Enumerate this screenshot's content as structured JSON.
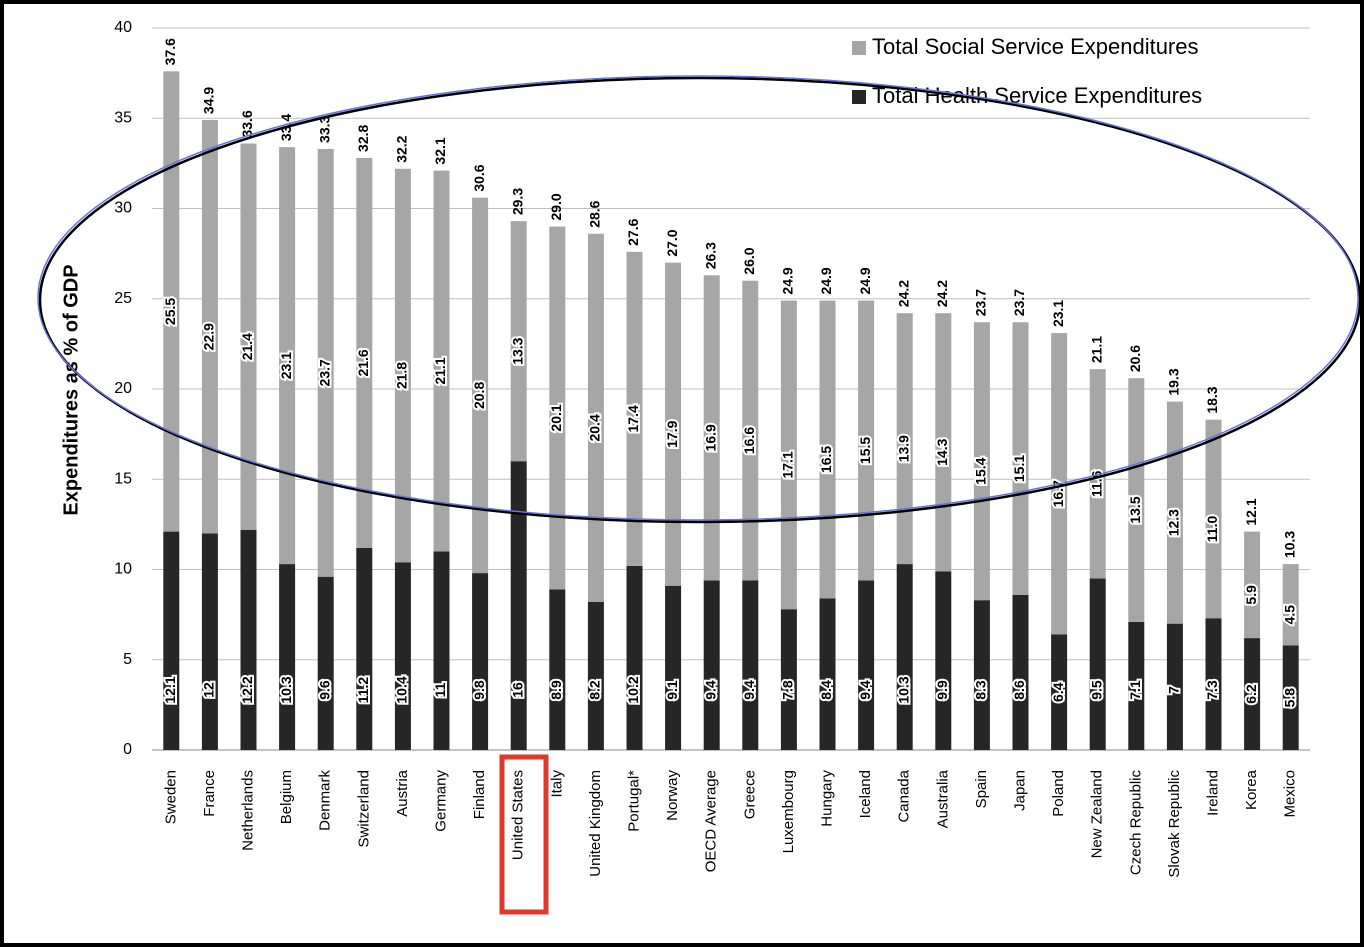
{
  "chart_data": {
    "type": "stacked-bar",
    "y_label": "Expenditures as % of GDP",
    "categories": [
      "Sweden",
      "France",
      "Netherlands",
      "Belgium",
      "Denmark",
      "Switzerland",
      "Austria",
      "Germany",
      "Finland",
      "United States",
      "Italy",
      "United Kingdom",
      "Portugal*",
      "Norway",
      "OECD Average",
      "Greece",
      "Luxembourg",
      "Hungary",
      "Iceland",
      "Canada",
      "Australia",
      "Spain",
      "Japan",
      "Poland",
      "New Zealand",
      "Czech Republic",
      "Slovak Republic",
      "Ireland",
      "Korea",
      "Mexico"
    ],
    "series": [
      {
        "name": "Total Health Service Expenditures",
        "color": "#262626",
        "values": [
          12.1,
          12,
          12.2,
          10.3,
          9.6,
          11.2,
          10.4,
          11,
          9.8,
          16,
          8.9,
          8.2,
          10.2,
          9.1,
          9.4,
          9.4,
          7.8,
          8.4,
          9.4,
          10.3,
          9.9,
          8.3,
          8.6,
          6.4,
          9.5,
          7.1,
          7,
          7.3,
          6.2,
          5.8
        ],
        "value_labels": [
          "12.1",
          "12",
          "12.2",
          "10.3",
          "9.6",
          "11.2",
          "10.4",
          "11",
          "9.8",
          "16",
          "8.9",
          "8.2",
          "10.2",
          "9.1",
          "9.4",
          "9.4",
          "7.8",
          "8.4",
          "9.4",
          "10.3",
          "9.9",
          "8.3",
          "8.6",
          "6.4",
          "9.5",
          "7.1",
          "7",
          "7.3",
          "6.2",
          "5.8"
        ]
      },
      {
        "name": "Total Social Service Expenditures",
        "color": "#a6a6a6",
        "values": [
          25.5,
          22.9,
          21.4,
          23.1,
          23.7,
          21.6,
          21.8,
          21.1,
          20.8,
          13.3,
          20.1,
          20.4,
          17.4,
          17.9,
          16.9,
          16.6,
          17.1,
          16.5,
          15.5,
          13.9,
          14.3,
          15.4,
          15.1,
          16.7,
          11.6,
          13.5,
          12.3,
          11.0,
          5.9,
          4.5
        ],
        "value_labels": [
          "25.5",
          "22.9",
          "21.4",
          "23.1",
          "23.7",
          "21.6",
          "21.8",
          "21.1",
          "20.8",
          "13.3",
          "20.1",
          "20.4",
          "17.4",
          "17.9",
          "16.9",
          "16.6",
          "17.1",
          "16.5",
          "15.5",
          "13.9",
          "14.3",
          "15.4",
          "15.1",
          "16.7",
          "11.6",
          "13.5",
          "12.3",
          "11.0",
          "5.9",
          "4.5"
        ]
      }
    ],
    "totals": [
      37.6,
      34.9,
      33.6,
      33.4,
      33.3,
      32.8,
      32.2,
      32.1,
      30.6,
      29.3,
      29.0,
      28.6,
      27.6,
      27.0,
      26.3,
      26.0,
      24.9,
      24.9,
      24.9,
      24.2,
      24.2,
      23.7,
      23.7,
      23.1,
      21.1,
      20.6,
      19.3,
      18.3,
      12.1,
      10.3
    ],
    "total_labels": [
      "37.6",
      "34.9",
      "33.6",
      "33.4",
      "33.3",
      "32.8",
      "32.2",
      "32.1",
      "30.6",
      "29.3",
      "29.0",
      "28.6",
      "27.6",
      "27.0",
      "26.3",
      "26.0",
      "24.9",
      "24.9",
      "24.9",
      "24.2",
      "24.2",
      "23.7",
      "23.7",
      "23.1",
      "21.1",
      "20.6",
      "19.3",
      "18.3",
      "12.1",
      "10.3"
    ],
    "ylim": [
      0,
      40
    ],
    "yticks": [
      0,
      5,
      10,
      15,
      20,
      25,
      30,
      35,
      40
    ],
    "grid": true,
    "legend": "top-right"
  }
}
